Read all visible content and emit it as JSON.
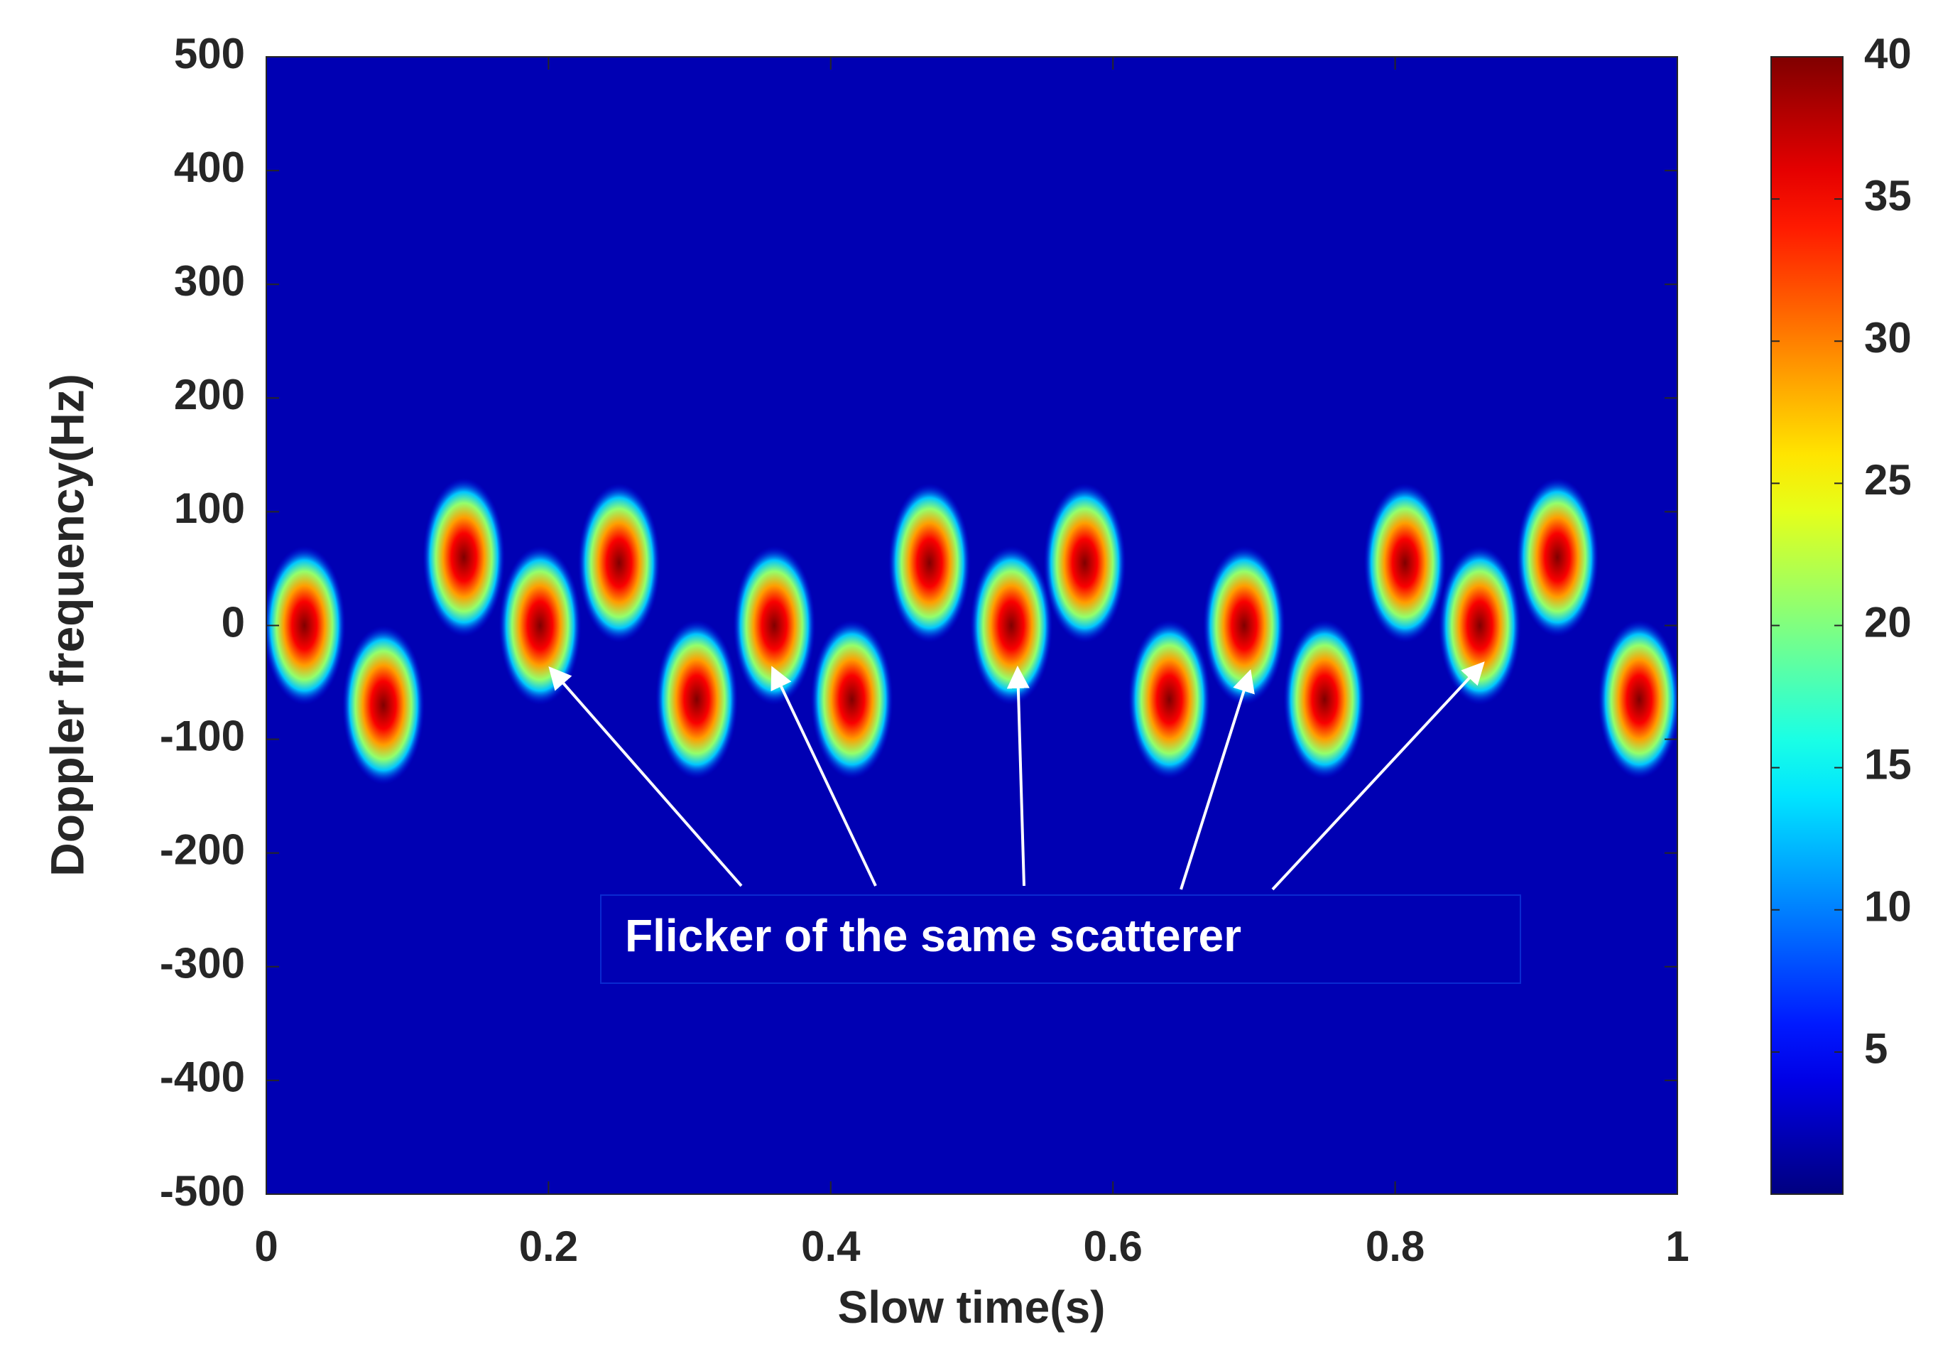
{
  "chart_data": {
    "type": "heatmap",
    "x_label": "Slow time(s)",
    "y_label": "Doppler frequency(Hz)",
    "annotation": "Flicker of the same scatterer",
    "x": [
      0.027,
      0.083,
      0.14,
      0.194,
      0.25,
      0.305,
      0.36,
      0.415,
      0.47,
      0.528,
      0.58,
      0.64,
      0.693,
      0.75,
      0.807,
      0.86,
      0.915,
      0.973
    ],
    "y": [
      0,
      -70,
      60,
      0,
      55,
      -65,
      0,
      -65,
      55,
      0,
      55,
      -65,
      0,
      -65,
      55,
      0,
      60,
      -65
    ],
    "values": [
      40,
      40,
      40,
      40,
      40,
      40,
      40,
      40,
      40,
      40,
      40,
      40,
      40,
      40,
      40,
      40,
      40,
      40
    ],
    "xlim": [
      0,
      1
    ],
    "xticks": [
      0,
      0.2,
      0.4,
      0.6,
      0.8,
      1
    ],
    "ylim": [
      -500,
      500
    ],
    "yticks": [
      -500,
      -400,
      -300,
      -200,
      -100,
      0,
      100,
      200,
      300,
      400,
      500
    ],
    "clim": [
      0,
      40
    ],
    "cticks": [
      5,
      10,
      15,
      20,
      25,
      30,
      35,
      40
    ],
    "colormap": "jet"
  }
}
